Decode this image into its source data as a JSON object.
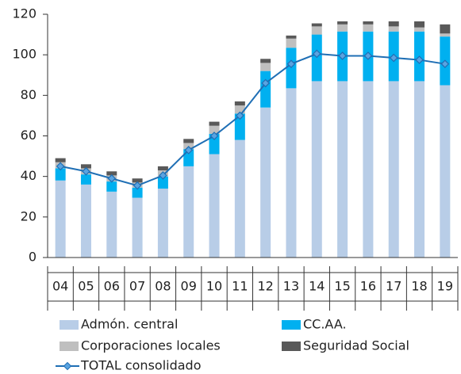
{
  "chart_data": {
    "type": "bar",
    "categories": [
      "04",
      "05",
      "06",
      "07",
      "08",
      "09",
      "10",
      "11",
      "12",
      "13",
      "14",
      "15",
      "16",
      "17",
      "18",
      "19"
    ],
    "series": [
      {
        "name": "Admón. central",
        "color": "#b8cde7",
        "values": [
          38,
          36,
          32.5,
          29.5,
          34,
          45,
          51,
          58,
          74,
          83.5,
          87,
          87,
          87,
          87,
          87,
          85
        ]
      },
      {
        "name": "CC.AA.",
        "color": "#00b0f0",
        "values": [
          6,
          5,
          5,
          5,
          6,
          8.5,
          10,
          13,
          18,
          20,
          23,
          24.5,
          24.5,
          24.5,
          24.5,
          24
        ]
      },
      {
        "name": "Corporaciones locales",
        "color": "#bfbfbf",
        "values": [
          3,
          3,
          3,
          2.5,
          3,
          3,
          4,
          4,
          4,
          4.5,
          4,
          3.5,
          3.5,
          2.5,
          2,
          1.5
        ]
      },
      {
        "name": "Seguridad Social",
        "color": "#595959",
        "values": [
          2,
          2,
          2,
          2,
          2,
          2,
          2,
          2,
          2,
          1.5,
          1.5,
          1.5,
          1.5,
          2.5,
          3,
          4.5
        ]
      },
      {
        "name": "TOTAL consolidado",
        "type": "line",
        "color": "#1f6fb5",
        "values": [
          45,
          42.5,
          39,
          35.5,
          40.5,
          53,
          60,
          70,
          86,
          95.5,
          100.5,
          99.5,
          99.5,
          98.5,
          97.5,
          95.5
        ]
      }
    ],
    "ylim": [
      0,
      120
    ],
    "yticks": [
      0,
      20,
      40,
      60,
      80,
      100,
      120
    ],
    "grid": false,
    "legend": "bottom"
  }
}
